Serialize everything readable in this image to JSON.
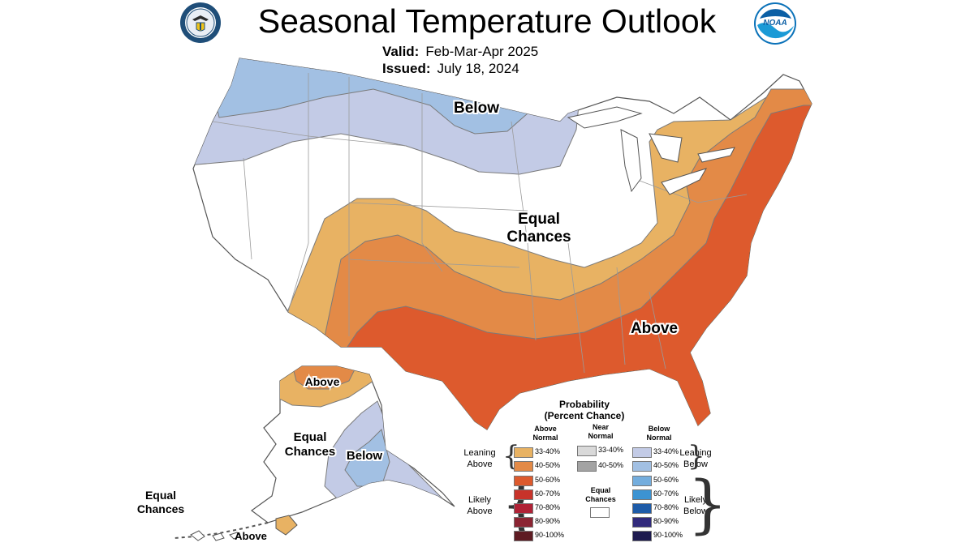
{
  "header": {
    "title": "Seasonal Temperature Outlook",
    "valid_label": "Valid:",
    "valid_value": "Feb-Mar-Apr 2025",
    "issued_label": "Issued:",
    "issued_value": "July 18, 2024"
  },
  "logos": {
    "left": "department-of-commerce-seal",
    "right": "noaa-logo",
    "noaa_text": "NOAA"
  },
  "map_labels": {
    "below_conus": "Below",
    "equal_conus_1": "Equal",
    "equal_conus_2": "Chances",
    "above_conus": "Above",
    "above_alaska": "Above",
    "equal_alaska_1": "Equal",
    "equal_alaska_2": "Chances",
    "below_alaska": "Below",
    "equal_hawaii_1": "Equal",
    "equal_hawaii_2": "Chances",
    "above_hawaii": "Above"
  },
  "colors": {
    "above_33_40": "#e8b263",
    "above_40_50": "#e38a47",
    "above_50_60": "#dd5a2d",
    "above_60_70": "#c8332a",
    "above_70_80": "#b02236",
    "above_80_90": "#8b2432",
    "above_90_100": "#5e1b22",
    "near_33_40": "#d9d9d9",
    "near_40_50": "#a3a3a3",
    "below_33_40": "#c3cbe6",
    "below_40_50": "#a2c0e3",
    "below_50_60": "#74addd",
    "below_60_70": "#3c93d2",
    "below_70_80": "#1e5ca8",
    "below_80_90": "#312a7c",
    "below_90_100": "#1d1a4f",
    "boundary": "#7a7a7a"
  },
  "legend": {
    "title_1": "Probability",
    "title_2": "(Percent Chance)",
    "col_above_1": "Above",
    "col_above_2": "Normal",
    "col_near_1": "Near",
    "col_near_2": "Normal",
    "col_below_1": "Below",
    "col_below_2": "Normal",
    "leaning_above_1": "Leaning",
    "leaning_above_2": "Above",
    "likely_above_1": "Likely",
    "likely_above_2": "Above",
    "leaning_below_1": "Leaning",
    "leaning_below_2": "Below",
    "likely_below_1": "Likely",
    "likely_below_2": "Below",
    "equal_1": "Equal",
    "equal_2": "Chances",
    "above_ranges": [
      "33-40%",
      "40-50%",
      "50-60%",
      "60-70%",
      "70-80%",
      "80-90%",
      "90-100%"
    ],
    "near_ranges": [
      "33-40%",
      "40-50%"
    ],
    "below_ranges": [
      "33-40%",
      "40-50%",
      "50-60%",
      "60-70%",
      "70-80%",
      "80-90%",
      "90-100%"
    ]
  }
}
